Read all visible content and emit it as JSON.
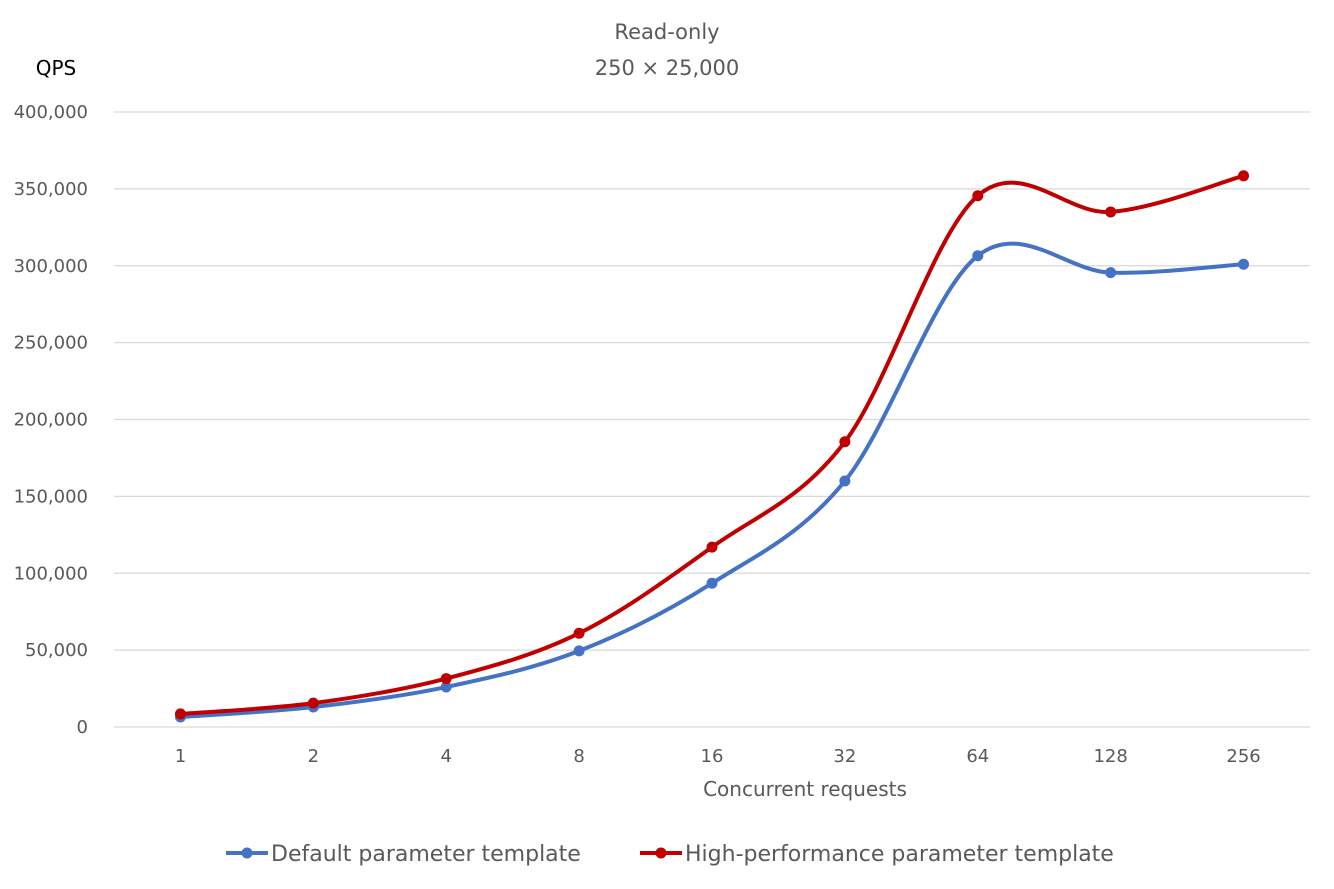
{
  "chart_data": {
    "type": "line",
    "title": "Read-only",
    "subtitle": "250 × 25,000",
    "ylabel": "QPS",
    "xlabel": "Concurrent requests",
    "categories": [
      "1",
      "2",
      "4",
      "8",
      "16",
      "32",
      "64",
      "128",
      "256"
    ],
    "ylim": [
      0,
      400000
    ],
    "yticks": [
      0,
      50000,
      100000,
      150000,
      200000,
      250000,
      300000,
      350000,
      400000
    ],
    "ytick_labels": [
      "0",
      "50,000",
      "100,000",
      "150,000",
      "200,000",
      "250,000",
      "300,000",
      "350,000",
      "400,000"
    ],
    "grid": true,
    "smooth": true,
    "legend_position": "bottom",
    "series": [
      {
        "name": "Default parameter template",
        "color": "#4472C4",
        "values": [
          6500,
          13000,
          26000,
          49500,
          93500,
          160000,
          306500,
          295500,
          301000
        ]
      },
      {
        "name": "High-performance parameter template",
        "color": "#C00000",
        "values": [
          8500,
          15500,
          31500,
          61000,
          117000,
          185500,
          345500,
          335000,
          358500
        ]
      }
    ]
  }
}
